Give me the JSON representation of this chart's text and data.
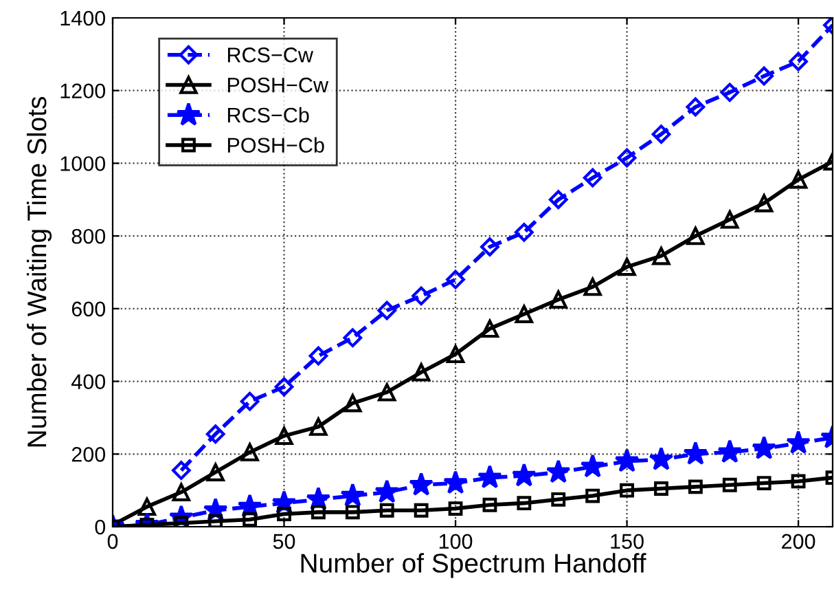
{
  "chart_data": {
    "type": "line",
    "xlabel": "Number of Spectrum Handoff",
    "ylabel": "Number of Waiting Time Slots",
    "x": [
      0,
      10,
      20,
      30,
      40,
      50,
      60,
      70,
      80,
      90,
      100,
      110,
      120,
      130,
      140,
      150,
      160,
      170,
      180,
      190,
      200,
      210
    ],
    "xlim": [
      0,
      210
    ],
    "xticks": [
      0,
      50,
      100,
      150,
      200
    ],
    "ylim": [
      0,
      1400
    ],
    "yticks": [
      0,
      200,
      400,
      600,
      800,
      1000,
      1200,
      1400
    ],
    "grid": true,
    "legend": "top left",
    "series": [
      {
        "name": "RCS−Cw",
        "color": "#0000ff",
        "marker": "diamond",
        "line_style": "dashed",
        "values": [
          null,
          null,
          155,
          255,
          345,
          385,
          470,
          520,
          595,
          635,
          680,
          770,
          810,
          900,
          960,
          1015,
          1080,
          1155,
          1195,
          1240,
          1280,
          1380
        ]
      },
      {
        "name": "POSH−Cw",
        "color": "#000000",
        "marker": "triangle",
        "line_style": "solid",
        "values": [
          5,
          55,
          95,
          150,
          205,
          250,
          275,
          340,
          370,
          425,
          475,
          545,
          585,
          625,
          660,
          715,
          745,
          800,
          845,
          890,
          955,
          1005
        ]
      },
      {
        "name": "RCS−Cb",
        "color": "#0000ff",
        "marker": "star",
        "line_style": "dashed",
        "values": [
          0,
          5,
          25,
          45,
          55,
          65,
          75,
          85,
          95,
          115,
          120,
          135,
          140,
          150,
          165,
          180,
          185,
          200,
          205,
          215,
          230,
          245
        ]
      },
      {
        "name": "POSH−Cb",
        "color": "#000000",
        "marker": "square",
        "line_style": "solid",
        "values": [
          0,
          5,
          10,
          15,
          20,
          35,
          40,
          40,
          45,
          45,
          50,
          60,
          65,
          75,
          85,
          100,
          105,
          110,
          115,
          120,
          125,
          135
        ]
      }
    ]
  }
}
